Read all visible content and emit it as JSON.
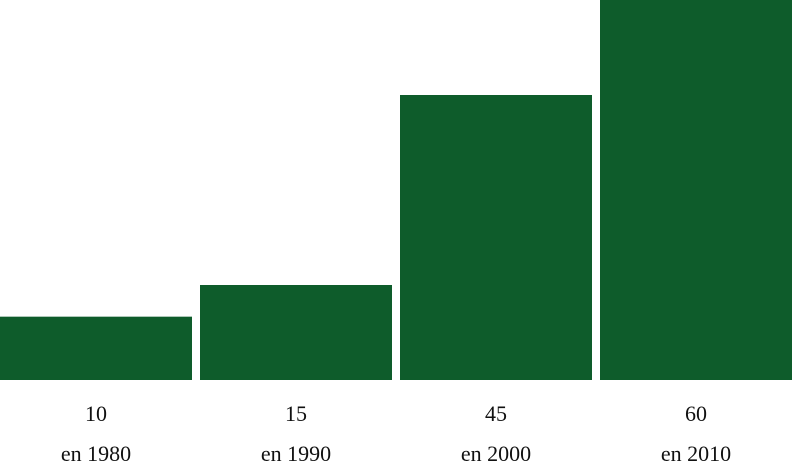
{
  "chart_data": {
    "type": "bar",
    "categories": [
      "en 1980",
      "en 1990",
      "en 2000",
      "en 2010"
    ],
    "values": [
      10,
      15,
      45,
      60
    ],
    "color": "#0e5c2b",
    "ylim": [
      0,
      60
    ]
  }
}
